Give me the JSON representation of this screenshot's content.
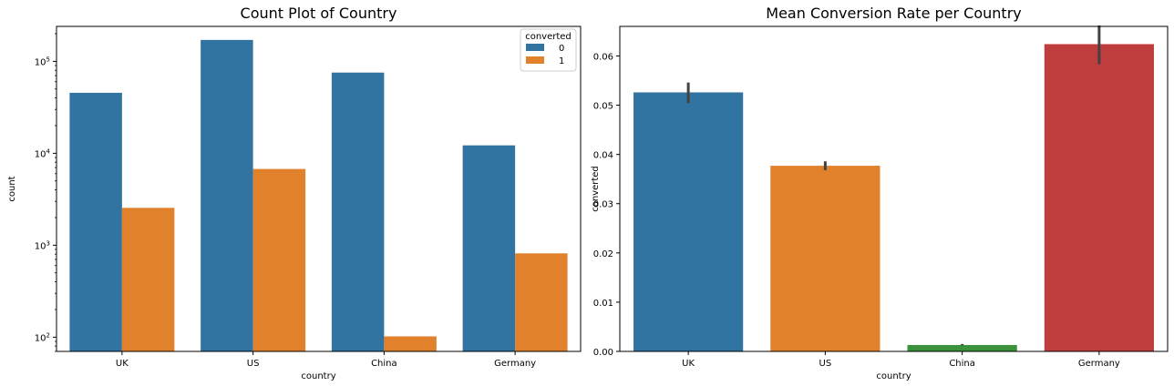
{
  "chart_data": [
    {
      "type": "bar",
      "title": "Count Plot of Country",
      "xlabel": "country",
      "ylabel": "count",
      "yscale": "log",
      "ylim": [
        70,
        240000
      ],
      "yticks": [
        {
          "value": 100,
          "base": "10",
          "exp": "2"
        },
        {
          "value": 1000,
          "base": "10",
          "exp": "3"
        },
        {
          "value": 10000,
          "base": "10",
          "exp": "4"
        },
        {
          "value": 100000,
          "base": "10",
          "exp": "5"
        }
      ],
      "categories": [
        "UK",
        "US",
        "China",
        "Germany"
      ],
      "legend": {
        "title": "converted",
        "placement": "upper right"
      },
      "series": [
        {
          "name": "0",
          "color": "#3274a1",
          "values": [
            45500,
            171000,
            75500,
            12200
          ]
        },
        {
          "name": "1",
          "color": "#e1812c",
          "values": [
            2550,
            6750,
            102,
            816
          ]
        }
      ]
    },
    {
      "type": "bar",
      "title": "Mean Conversion Rate per Country",
      "xlabel": "country",
      "ylabel": "converted",
      "ylim": [
        0,
        0.066
      ],
      "yticks": [
        "0.00",
        "0.01",
        "0.02",
        "0.03",
        "0.04",
        "0.05",
        "0.06"
      ],
      "categories": [
        "UK",
        "US",
        "China",
        "Germany"
      ],
      "colors": [
        "#3274a1",
        "#e1812c",
        "#3a923a",
        "#c03d3e"
      ],
      "values": [
        0.0526,
        0.0377,
        0.0013,
        0.0624
      ],
      "error_bars": [
        [
          0.0504,
          0.0546
        ],
        [
          0.0368,
          0.0386
        ],
        [
          0.0012,
          0.0015
        ],
        [
          0.0583,
          0.0662
        ]
      ]
    }
  ]
}
